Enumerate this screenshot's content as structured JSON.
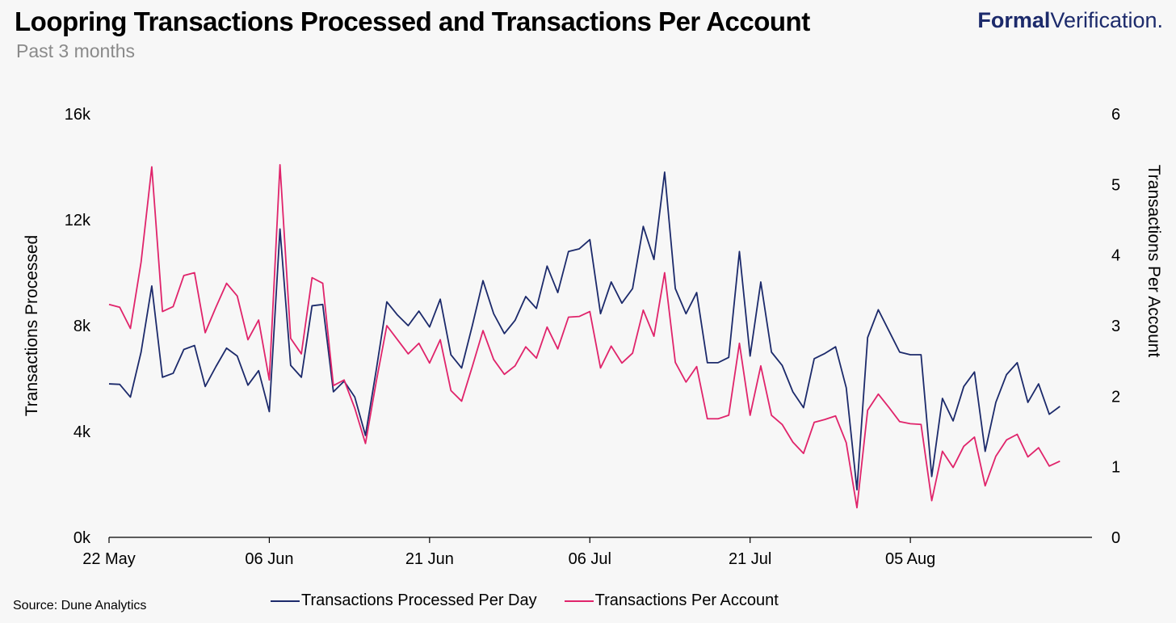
{
  "header": {
    "title": "Loopring Transactions Processed and Transactions Per Account",
    "subtitle": "Past 3 months",
    "brand_bold": "Formal",
    "brand_regular": "Verification."
  },
  "footer": {
    "source": "Source: Dune Analytics"
  },
  "colors": {
    "navy": "#1c2a6b",
    "pink": "#e0246b"
  },
  "chart_data": {
    "type": "line",
    "title": "Loopring Transactions Processed and Transactions Per Account",
    "subtitle": "Past 3 months",
    "x_tick_labels": [
      "22 May",
      "06 Jun",
      "21 Jun",
      "06 Jul",
      "21 Jul",
      "05 Aug"
    ],
    "x_tick_dates": [
      "2022-05-22",
      "2022-06-06",
      "2022-06-21",
      "2022-07-06",
      "2022-07-21",
      "2022-08-05"
    ],
    "x_start": "2022-05-22",
    "x_end": "2022-08-22",
    "y_left": {
      "label": "Transactions Processed",
      "min": 0,
      "max": 16000,
      "ticks": [
        0,
        4000,
        8000,
        12000,
        16000
      ],
      "tick_labels": [
        "0k",
        "4k",
        "8k",
        "12k",
        "16k"
      ]
    },
    "y_right": {
      "label": "Transactions Per Account",
      "min": 0,
      "max": 6,
      "ticks": [
        0,
        1,
        2,
        3,
        4,
        5,
        6
      ],
      "tick_labels": [
        "0",
        "1",
        "2",
        "3",
        "4",
        "5",
        "6"
      ]
    },
    "legend_position": "bottom",
    "grid": false,
    "series": [
      {
        "name": "Transactions Processed Per Day",
        "axis": "left",
        "color": "#1c2a6b",
        "values": [
          5800,
          5780,
          5300,
          7000,
          9500,
          6050,
          6200,
          7100,
          7250,
          5700,
          6450,
          7150,
          6850,
          5750,
          6300,
          4750,
          11650,
          6500,
          6050,
          8750,
          8800,
          5500,
          5900,
          5300,
          3850,
          6300,
          8900,
          8400,
          8000,
          8550,
          7950,
          9000,
          6900,
          6400,
          8000,
          9700,
          8450,
          7700,
          8200,
          9100,
          8650,
          10250,
          9250,
          10800,
          10900,
          11250,
          8450,
          9650,
          8850,
          9400,
          11750,
          10500,
          13800,
          9400,
          8450,
          9250,
          6600,
          6600,
          6800,
          10800,
          6850,
          9650,
          7000,
          6500,
          5500,
          4900,
          6750,
          6950,
          7200,
          5650,
          1800,
          7550,
          8600,
          7800,
          7000,
          6900,
          6900,
          2300,
          5250,
          4400,
          5700,
          6250,
          3250,
          5100,
          6150,
          6600,
          5100,
          5800,
          4650,
          4950
        ]
      },
      {
        "name": "Transactions Per Account",
        "axis": "right",
        "color": "#e0246b",
        "values": [
          3.3,
          3.26,
          2.96,
          3.9,
          5.25,
          3.2,
          3.27,
          3.71,
          3.75,
          2.9,
          3.26,
          3.6,
          3.42,
          2.8,
          3.08,
          2.23,
          5.28,
          2.82,
          2.6,
          3.68,
          3.6,
          2.15,
          2.23,
          1.83,
          1.33,
          2.2,
          3.0,
          2.8,
          2.6,
          2.75,
          2.47,
          2.8,
          2.08,
          1.93,
          2.42,
          2.93,
          2.52,
          2.31,
          2.43,
          2.7,
          2.54,
          2.98,
          2.67,
          3.12,
          3.13,
          3.2,
          2.4,
          2.71,
          2.47,
          2.61,
          3.22,
          2.85,
          3.75,
          2.48,
          2.2,
          2.42,
          1.68,
          1.68,
          1.73,
          2.75,
          1.73,
          2.43,
          1.73,
          1.6,
          1.35,
          1.19,
          1.63,
          1.67,
          1.72,
          1.34,
          0.42,
          1.8,
          2.03,
          1.84,
          1.64,
          1.61,
          1.6,
          0.52,
          1.22,
          0.99,
          1.29,
          1.42,
          0.73,
          1.15,
          1.38,
          1.46,
          1.14,
          1.27,
          1.01,
          1.08
        ]
      }
    ]
  }
}
